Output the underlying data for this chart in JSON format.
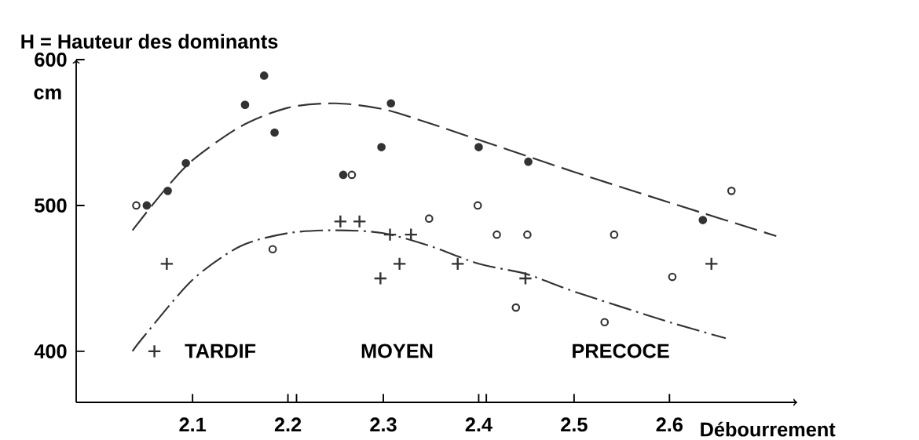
{
  "chart_data": {
    "type": "scatter",
    "ylabel": "H = Hauteur des dominants",
    "xlabel": "Débourrement",
    "xlim": [
      1.978,
      2.734
    ],
    "ylim": [
      365,
      600
    ],
    "xticks": [
      2.1,
      2.2,
      {
        "value": 2.209,
        "label": null
      },
      2.3,
      2.4,
      {
        "value": 2.408,
        "label": null
      },
      2.5,
      2.6
    ],
    "yticks": [
      400,
      500,
      600
    ],
    "series": [
      {
        "marker": "circle",
        "color": "#333333",
        "x": [
          2.052,
          2.074,
          2.093,
          2.155,
          2.175,
          2.186,
          2.258,
          2.298,
          2.308,
          2.4,
          2.452,
          2.635
        ],
        "values": [
          500,
          510,
          529,
          569,
          589,
          550,
          521,
          540,
          570,
          540,
          530,
          490
        ]
      },
      {
        "marker": "open circle",
        "color": "#333333",
        "x": [
          2.041,
          2.184,
          2.267,
          2.348,
          2.399,
          2.419,
          2.439,
          2.451,
          2.532,
          2.542,
          2.603,
          2.665
        ],
        "values": [
          500,
          470,
          521,
          491,
          500,
          480,
          430,
          480,
          420,
          480,
          451,
          510
        ]
      },
      {
        "marker": "cross",
        "color": "#333333",
        "x": [
          2.06,
          2.073,
          2.255,
          2.275,
          2.297,
          2.307,
          2.317,
          2.329,
          2.378,
          2.449,
          2.644
        ],
        "values": [
          400,
          460,
          489,
          489,
          450,
          480,
          460,
          480,
          460,
          450,
          460
        ]
      },
      {
        "type": "line",
        "marker": "none",
        "line_style": "dashed",
        "color": "#333333",
        "x": [
          2.037,
          2.07,
          2.1,
          2.15,
          2.2,
          2.25,
          2.3,
          2.35,
          2.4,
          2.5,
          2.6,
          2.712
        ],
        "values": [
          483,
          510,
          531,
          554,
          567,
          570,
          566,
          556,
          545,
          523,
          502,
          479
        ]
      },
      {
        "type": "line",
        "marker": "none",
        "line_style": "dashdot",
        "color": "#333333",
        "x": [
          2.037,
          2.05,
          2.1,
          2.15,
          2.2,
          2.25,
          2.3,
          2.35,
          2.4,
          2.45,
          2.5,
          2.6,
          2.659
        ],
        "values": [
          400,
          411,
          449,
          472,
          481,
          483,
          481,
          472,
          460,
          453,
          441,
          420,
          409
        ]
      }
    ],
    "annotations": [
      "cm",
      "TARDIF",
      "MOYEN",
      "PRECOCE"
    ]
  }
}
